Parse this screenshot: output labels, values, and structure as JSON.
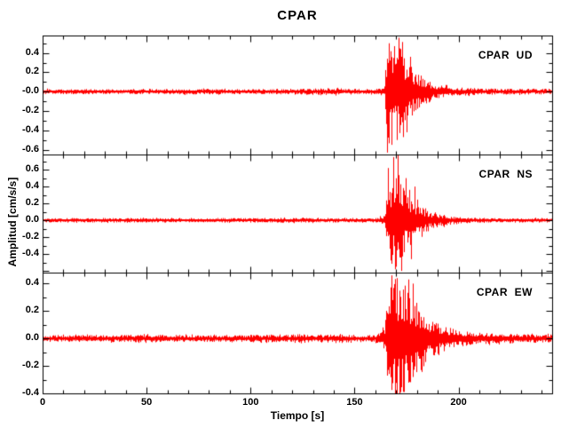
{
  "title": "CPAR",
  "axes": {
    "x_label": "Tiempo [s]",
    "y_label": "Amplitud [cm/s/s]"
  },
  "colors": {
    "trace": "#ff0000",
    "axis": "#000000",
    "background": "#ffffff"
  },
  "chart_data": {
    "type": "line",
    "subtype": "seismogram-3-component",
    "station": "CPAR",
    "title": "CPAR",
    "xlabel": "Tiempo [s]",
    "ylabel": "Amplitud [cm/s/s]",
    "xlim": [
      0,
      245
    ],
    "x_major_ticks": [
      0,
      50,
      100,
      150,
      200
    ],
    "x_major_tick_labels": [
      "0",
      "50",
      "100",
      "150",
      "200"
    ],
    "x_minor_step": 10,
    "grid": false,
    "legend": "none",
    "event_onset_s": 165,
    "panels": [
      {
        "label": "CPAR  UD",
        "component": "UD",
        "seed": 101,
        "ylim": [
          -0.65,
          0.58
        ],
        "ytick_values": [
          0.4,
          0.2,
          0,
          -0.2,
          -0.4,
          -0.6
        ],
        "ytick_labels": [
          "0.4",
          "0.2",
          "-0.0",
          "-0.2",
          "-0.4",
          "-0.6"
        ],
        "y_minor_step": 0.1,
        "peak_amplitude": 0.63,
        "envelope": [
          [
            0,
            0.028
          ],
          [
            40,
            0.024
          ],
          [
            70,
            0.03
          ],
          [
            100,
            0.025
          ],
          [
            125,
            0.032
          ],
          [
            140,
            0.036
          ],
          [
            152,
            0.028
          ],
          [
            160,
            0.026
          ],
          [
            164.5,
            0.05
          ],
          [
            165.5,
            0.45
          ],
          [
            166.5,
            0.62
          ],
          [
            168,
            0.55
          ],
          [
            170,
            0.45
          ],
          [
            172,
            0.5
          ],
          [
            174,
            0.4
          ],
          [
            176,
            0.32
          ],
          [
            178,
            0.25
          ],
          [
            180,
            0.2
          ],
          [
            183,
            0.15
          ],
          [
            186,
            0.11
          ],
          [
            190,
            0.08
          ],
          [
            194,
            0.06
          ],
          [
            198,
            0.05
          ],
          [
            204,
            0.04
          ],
          [
            212,
            0.034
          ],
          [
            225,
            0.03
          ],
          [
            245,
            0.03
          ]
        ],
        "spikes": [
          [
            165.8,
            -0.63
          ],
          [
            166.6,
            0.5
          ],
          [
            167.6,
            -0.55
          ],
          [
            169,
            0.47
          ],
          [
            170.3,
            -0.5
          ],
          [
            172,
            0.44
          ],
          [
            173.5,
            -0.47
          ],
          [
            175.2,
            -0.42
          ],
          [
            176.5,
            0.36
          ]
        ]
      },
      {
        "label": "CPAR  NS",
        "component": "NS",
        "seed": 202,
        "ylim": [
          -0.62,
          0.78
        ],
        "ytick_values": [
          0.6,
          0.4,
          0.2,
          0,
          -0.2,
          -0.4
        ],
        "ytick_labels": [
          "0.6",
          "0.4",
          "0.2",
          "0.0",
          "-0.2",
          "-0.4"
        ],
        "y_minor_step": 0.1,
        "peak_amplitude": 0.78,
        "envelope": [
          [
            0,
            0.024
          ],
          [
            40,
            0.028
          ],
          [
            80,
            0.023
          ],
          [
            115,
            0.03
          ],
          [
            145,
            0.026
          ],
          [
            160,
            0.025
          ],
          [
            164.5,
            0.06
          ],
          [
            165.5,
            0.35
          ],
          [
            167,
            0.5
          ],
          [
            169,
            0.55
          ],
          [
            171,
            0.58
          ],
          [
            173,
            0.45
          ],
          [
            175,
            0.38
          ],
          [
            177,
            0.3
          ],
          [
            180,
            0.22
          ],
          [
            183,
            0.16
          ],
          [
            187,
            0.11
          ],
          [
            191,
            0.08
          ],
          [
            195,
            0.06
          ],
          [
            200,
            0.045
          ],
          [
            208,
            0.035
          ],
          [
            220,
            0.028
          ],
          [
            245,
            0.026
          ]
        ],
        "spikes": [
          [
            166,
            0.62
          ],
          [
            168.6,
            0.75
          ],
          [
            170.8,
            0.78
          ],
          [
            169.8,
            -0.55
          ],
          [
            172.5,
            -0.6
          ],
          [
            174.5,
            0.5
          ],
          [
            177,
            -0.46
          ],
          [
            179,
            0.4
          ]
        ]
      },
      {
        "label": "CPAR  EW",
        "component": "EW",
        "seed": 303,
        "ylim": [
          -0.4,
          0.48
        ],
        "ytick_values": [
          0.4,
          0.2,
          0,
          -0.2,
          -0.4
        ],
        "ytick_labels": [
          "0.4",
          "0.2",
          "0.0",
          "-0.2",
          "-0.4"
        ],
        "y_minor_step": 0.1,
        "peak_amplitude": 0.46,
        "envelope": [
          [
            0,
            0.024
          ],
          [
            50,
            0.028
          ],
          [
            90,
            0.024
          ],
          [
            125,
            0.032
          ],
          [
            150,
            0.027
          ],
          [
            160,
            0.026
          ],
          [
            164.5,
            0.08
          ],
          [
            166,
            0.36
          ],
          [
            168,
            0.42
          ],
          [
            170,
            0.44
          ],
          [
            173,
            0.4
          ],
          [
            176,
            0.38
          ],
          [
            178,
            0.32
          ],
          [
            180,
            0.27
          ],
          [
            183,
            0.21
          ],
          [
            186,
            0.16
          ],
          [
            190,
            0.12
          ],
          [
            194,
            0.09
          ],
          [
            198,
            0.07
          ],
          [
            203,
            0.055
          ],
          [
            210,
            0.045
          ],
          [
            220,
            0.037
          ],
          [
            235,
            0.032
          ],
          [
            245,
            0.033
          ]
        ],
        "spikes": [
          [
            167.8,
            0.46
          ],
          [
            169.3,
            -0.38
          ],
          [
            170.2,
            0.44
          ],
          [
            171.6,
            -0.4
          ],
          [
            173.8,
            -0.39
          ],
          [
            175.8,
            0.43
          ],
          [
            178,
            0.4
          ]
        ]
      }
    ]
  }
}
